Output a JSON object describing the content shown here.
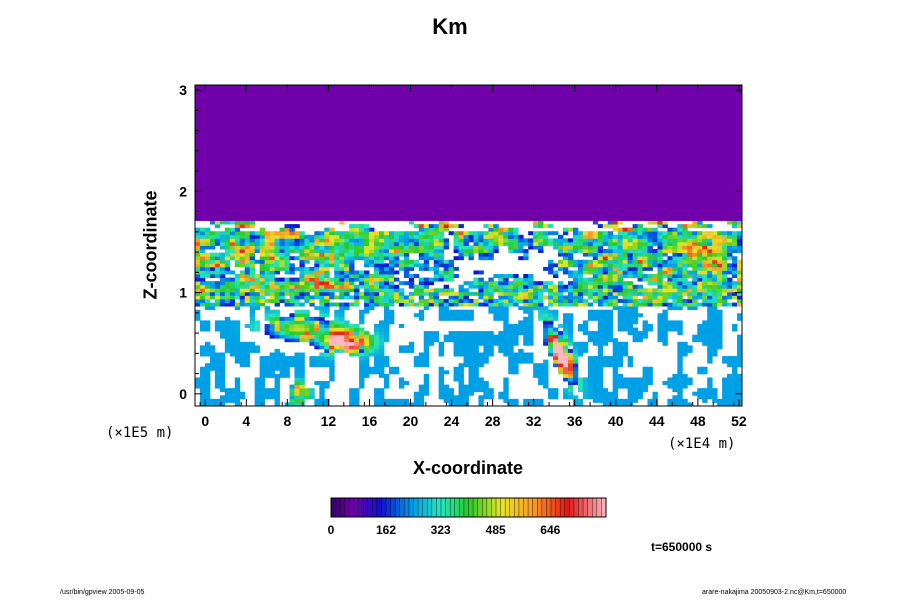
{
  "chart_data": {
    "type": "heatmap",
    "title": "Km",
    "xlabel": "X-coordinate",
    "ylabel": "Z-coordinate",
    "x_unit_label": "(×1E4 m)",
    "y_unit_label": "(×1E5 m)",
    "x_ticks": [
      "0",
      "4",
      "8",
      "12",
      "16",
      "20",
      "24",
      "28",
      "32",
      "36",
      "40",
      "44",
      "48",
      "52"
    ],
    "y_ticks": [
      "0",
      "1",
      "2",
      "3"
    ],
    "xlim": [
      -1,
      52.3
    ],
    "ylim": [
      -0.12,
      3.05
    ],
    "colorbar_ticks": [
      "0",
      "162",
      "323",
      "485",
      "646"
    ],
    "colorbar_range": [
      0,
      810
    ],
    "background_value": 0,
    "features": [
      {
        "region": "upper stable layer",
        "z_range": [
          1.7,
          3.05
        ],
        "value": 0
      },
      {
        "region": "turbulent cloud layer",
        "z_range": [
          1.0,
          1.7
        ],
        "value_range": [
          0,
          810
        ]
      },
      {
        "region": "thin layer",
        "z_range": [
          0.88,
          0.98
        ],
        "value_range": [
          0,
          600
        ]
      },
      {
        "region": "boundary layer",
        "z_range": [
          0.0,
          0.8
        ],
        "value_range": [
          0,
          700
        ],
        "maxima": [
          {
            "x": 13,
            "z": 0.55,
            "value": 700
          },
          {
            "x": 35,
            "z": 0.35,
            "value": 700
          }
        ]
      }
    ]
  },
  "annotations": {
    "timestamp": "t=650000 s",
    "footer_left": "/usr/bin/gpview 2005-09-05",
    "footer_right": "arare-nakajima 20050903-2.nc@Km,t=650000"
  }
}
